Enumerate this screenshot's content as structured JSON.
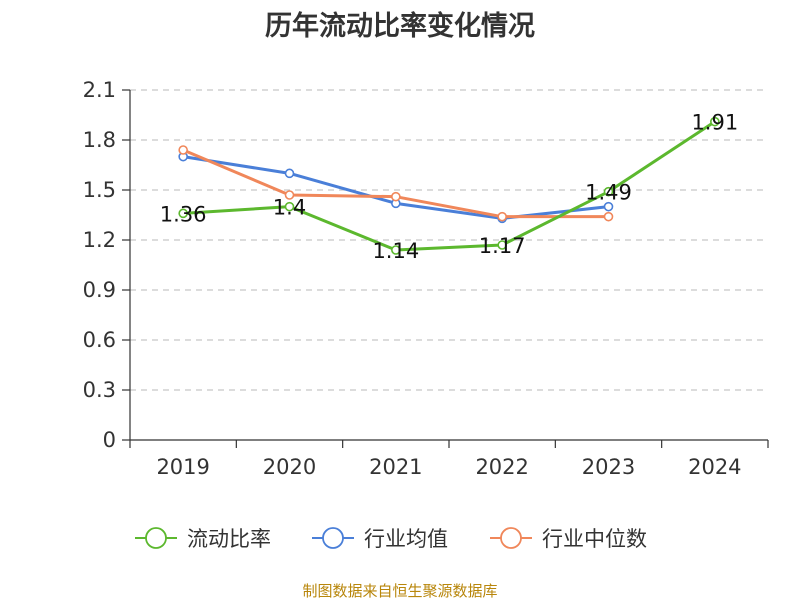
{
  "chart_data": {
    "type": "line",
    "title": "历年流动比率变化情况",
    "categories": [
      "2019",
      "2020",
      "2021",
      "2022",
      "2023",
      "2024"
    ],
    "yticks": [
      "0",
      "0.3",
      "0.6",
      "0.9",
      "1.2",
      "1.5",
      "1.8",
      "2.1"
    ],
    "ylim": [
      0,
      2.1
    ],
    "grid": true,
    "legend_position": "bottom",
    "series": [
      {
        "name": "流动比率",
        "color": "#5cb82e",
        "values": [
          1.36,
          1.4,
          1.14,
          1.17,
          1.49,
          1.91
        ],
        "labels": [
          "1.36",
          "1.4",
          "1.14",
          "1.17",
          "1.49",
          "1.91"
        ]
      },
      {
        "name": "行业均值",
        "color": "#4a7fd8",
        "values": [
          1.7,
          1.6,
          1.42,
          1.33,
          1.4,
          null
        ]
      },
      {
        "name": "行业中位数",
        "color": "#f0875a",
        "values": [
          1.74,
          1.47,
          1.46,
          1.34,
          1.34,
          null
        ]
      }
    ]
  },
  "source": "制图数据来自恒生聚源数据库"
}
